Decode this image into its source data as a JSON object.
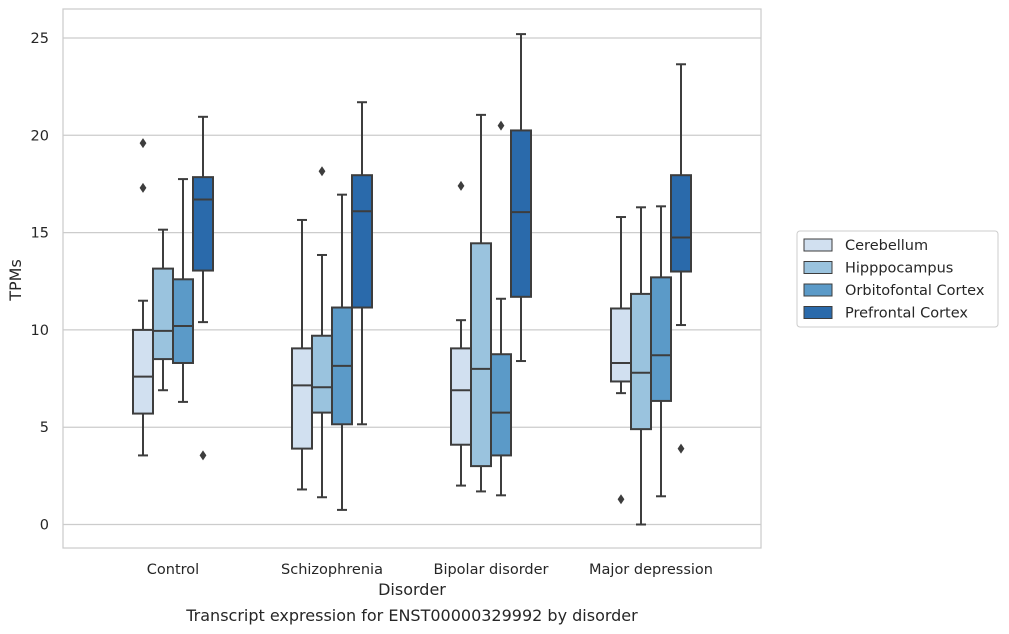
{
  "caption": "Transcript expression for ENST00000329992 by disorder",
  "chart_data": {
    "type": "box",
    "xlabel": "Disorder",
    "ylabel": "TPMs",
    "ylim": [
      -1.2,
      26.5
    ],
    "yticks": [
      0,
      5,
      10,
      15,
      20,
      25
    ],
    "grid": true,
    "legend_position": "right",
    "categories": [
      "Control",
      "Schizophrenia",
      "Bipolar disorder",
      "Major depression"
    ],
    "series": [
      {
        "name": "Cerebellum",
        "color": "#d1e0f0",
        "boxes": [
          {
            "whislo": 3.55,
            "q1": 5.7,
            "med": 7.6,
            "q3": 10.0,
            "whishi": 11.5,
            "fliers": [
              17.3,
              19.6
            ]
          },
          {
            "whislo": 1.8,
            "q1": 3.9,
            "med": 7.15,
            "q3": 9.05,
            "whishi": 15.65,
            "fliers": []
          },
          {
            "whislo": 2.0,
            "q1": 4.1,
            "med": 6.9,
            "q3": 9.05,
            "whishi": 10.5,
            "fliers": [
              17.4
            ]
          },
          {
            "whislo": 6.75,
            "q1": 7.35,
            "med": 8.3,
            "q3": 11.1,
            "whishi": 15.8,
            "fliers": [
              1.3
            ]
          }
        ]
      },
      {
        "name": "Hipppocampus",
        "color": "#9ac3de",
        "boxes": [
          {
            "whislo": 6.9,
            "q1": 8.5,
            "med": 9.95,
            "q3": 13.15,
            "whishi": 15.15,
            "fliers": []
          },
          {
            "whislo": 1.4,
            "q1": 5.75,
            "med": 7.05,
            "q3": 9.7,
            "whishi": 13.85,
            "fliers": [
              18.15
            ]
          },
          {
            "whislo": 1.7,
            "q1": 3.0,
            "med": 8.0,
            "q3": 14.45,
            "whishi": 21.05,
            "fliers": []
          },
          {
            "whislo": 0.0,
            "q1": 4.9,
            "med": 7.8,
            "q3": 11.85,
            "whishi": 16.3,
            "fliers": []
          }
        ]
      },
      {
        "name": "Orbitofontal Cortex",
        "color": "#5b9ac8",
        "boxes": [
          {
            "whislo": 6.3,
            "q1": 8.3,
            "med": 10.2,
            "q3": 12.6,
            "whishi": 17.75,
            "fliers": []
          },
          {
            "whislo": 0.75,
            "q1": 5.15,
            "med": 8.15,
            "q3": 11.15,
            "whishi": 16.95,
            "fliers": []
          },
          {
            "whislo": 1.5,
            "q1": 3.55,
            "med": 5.75,
            "q3": 8.75,
            "whishi": 11.6,
            "fliers": [
              20.5
            ]
          },
          {
            "whislo": 1.45,
            "q1": 6.35,
            "med": 8.7,
            "q3": 12.7,
            "whishi": 16.35,
            "fliers": []
          }
        ]
      },
      {
        "name": "Prefrontal Cortex",
        "color": "#2a6aab",
        "boxes": [
          {
            "whislo": 10.4,
            "q1": 13.05,
            "med": 16.7,
            "q3": 17.85,
            "whishi": 20.95,
            "fliers": [
              3.55
            ]
          },
          {
            "whislo": 5.15,
            "q1": 11.15,
            "med": 16.1,
            "q3": 17.95,
            "whishi": 21.7,
            "fliers": []
          },
          {
            "whislo": 8.4,
            "q1": 11.7,
            "med": 16.05,
            "q3": 20.25,
            "whishi": 25.2,
            "fliers": []
          },
          {
            "whislo": 10.25,
            "q1": 13.0,
            "med": 14.75,
            "q3": 17.95,
            "whishi": 23.65,
            "fliers": [
              3.9
            ]
          }
        ]
      }
    ]
  }
}
